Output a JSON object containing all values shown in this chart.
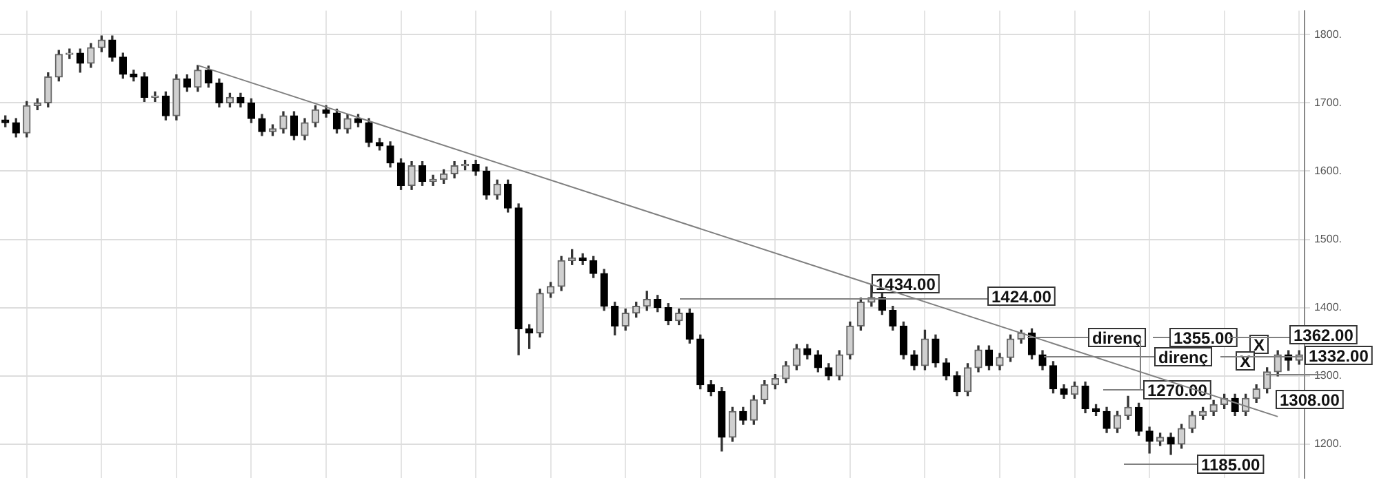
{
  "chart_data": {
    "type": "candlestick",
    "categories": [
      null,
      null,
      null,
      null,
      null,
      null,
      null,
      null,
      null,
      null,
      null,
      null,
      null,
      null,
      null,
      null,
      null,
      null,
      null,
      null,
      null,
      null,
      null,
      null,
      null,
      null,
      null,
      null,
      null,
      null,
      null,
      null,
      null,
      null,
      null,
      null,
      null,
      null,
      null,
      null,
      null,
      null,
      null,
      null,
      null,
      null,
      null,
      null,
      null,
      null,
      null,
      null,
      null,
      null,
      null,
      null,
      null,
      null,
      null,
      null,
      null,
      null,
      null,
      null,
      null,
      null,
      null,
      null,
      null,
      null,
      null,
      null,
      null,
      null,
      null,
      null,
      null,
      null,
      null,
      null,
      null,
      null,
      null,
      null,
      null,
      null,
      null,
      null,
      null,
      null,
      null,
      null,
      null,
      null,
      null,
      null,
      null,
      null,
      null,
      null,
      null,
      null,
      null,
      null,
      null,
      null,
      null,
      null,
      null,
      null,
      null,
      null,
      null,
      null,
      null,
      null,
      null,
      null,
      null,
      null,
      null,
      null
    ],
    "ohlc": [
      [
        1675,
        1681,
        1665,
        1671
      ],
      [
        1671,
        1677,
        1650,
        1656
      ],
      [
        1656,
        1702,
        1650,
        1696
      ],
      [
        1696,
        1706,
        1690,
        1700
      ],
      [
        1700,
        1744,
        1694,
        1738
      ],
      [
        1738,
        1777,
        1732,
        1771
      ],
      [
        1771,
        1779,
        1765,
        1773
      ],
      [
        1773,
        1779,
        1745,
        1758
      ],
      [
        1758,
        1787,
        1752,
        1781
      ],
      [
        1781,
        1798,
        1775,
        1792
      ],
      [
        1792,
        1798,
        1761,
        1767
      ],
      [
        1767,
        1773,
        1736,
        1742
      ],
      [
        1742,
        1748,
        1732,
        1738
      ],
      [
        1738,
        1744,
        1702,
        1708
      ],
      [
        1708,
        1716,
        1702,
        1710
      ],
      [
        1710,
        1716,
        1675,
        1681
      ],
      [
        1681,
        1741,
        1675,
        1735
      ],
      [
        1735,
        1741,
        1717,
        1723
      ],
      [
        1723,
        1755,
        1717,
        1748
      ],
      [
        1748,
        1754,
        1723,
        1729
      ],
      [
        1729,
        1735,
        1694,
        1700
      ],
      [
        1700,
        1714,
        1694,
        1708
      ],
      [
        1708,
        1714,
        1694,
        1700
      ],
      [
        1700,
        1706,
        1671,
        1677
      ],
      [
        1677,
        1683,
        1652,
        1658
      ],
      [
        1658,
        1668,
        1652,
        1662
      ],
      [
        1662,
        1687,
        1656,
        1681
      ],
      [
        1681,
        1687,
        1646,
        1652
      ],
      [
        1652,
        1677,
        1646,
        1671
      ],
      [
        1671,
        1696,
        1665,
        1690
      ],
      [
        1690,
        1696,
        1679,
        1685
      ],
      [
        1685,
        1691,
        1656,
        1662
      ],
      [
        1662,
        1683,
        1656,
        1677
      ],
      [
        1677,
        1683,
        1665,
        1671
      ],
      [
        1671,
        1677,
        1636,
        1642
      ],
      [
        1642,
        1648,
        1631,
        1637
      ],
      [
        1637,
        1643,
        1606,
        1612
      ],
      [
        1612,
        1618,
        1573,
        1579
      ],
      [
        1579,
        1614,
        1573,
        1608
      ],
      [
        1608,
        1614,
        1579,
        1585
      ],
      [
        1585,
        1594,
        1579,
        1588
      ],
      [
        1588,
        1602,
        1582,
        1596
      ],
      [
        1596,
        1614,
        1590,
        1608
      ],
      [
        1608,
        1616,
        1602,
        1610
      ],
      [
        1610,
        1616,
        1594,
        1600
      ],
      [
        1600,
        1606,
        1559,
        1565
      ],
      [
        1565,
        1587,
        1559,
        1581
      ],
      [
        1581,
        1587,
        1540,
        1546
      ],
      [
        1546,
        1552,
        1331,
        1369
      ],
      [
        1369,
        1375,
        1340,
        1363
      ],
      [
        1363,
        1427,
        1357,
        1421
      ],
      [
        1421,
        1437,
        1415,
        1431
      ],
      [
        1431,
        1475,
        1425,
        1469
      ],
      [
        1469,
        1485,
        1463,
        1473
      ],
      [
        1473,
        1479,
        1463,
        1469
      ],
      [
        1469,
        1475,
        1444,
        1450
      ],
      [
        1450,
        1456,
        1396,
        1402
      ],
      [
        1402,
        1408,
        1360,
        1373
      ],
      [
        1373,
        1398,
        1367,
        1392
      ],
      [
        1392,
        1408,
        1386,
        1402
      ],
      [
        1402,
        1424,
        1396,
        1412
      ],
      [
        1412,
        1418,
        1394,
        1400
      ],
      [
        1400,
        1406,
        1375,
        1381
      ],
      [
        1381,
        1398,
        1375,
        1392
      ],
      [
        1392,
        1398,
        1348,
        1354
      ],
      [
        1354,
        1360,
        1281,
        1287
      ],
      [
        1287,
        1293,
        1271,
        1277
      ],
      [
        1277,
        1283,
        1190,
        1210
      ],
      [
        1210,
        1254,
        1204,
        1248
      ],
      [
        1248,
        1254,
        1229,
        1235
      ],
      [
        1235,
        1271,
        1229,
        1265
      ],
      [
        1265,
        1293,
        1259,
        1287
      ],
      [
        1287,
        1302,
        1281,
        1296
      ],
      [
        1296,
        1321,
        1290,
        1315
      ],
      [
        1315,
        1346,
        1309,
        1340
      ],
      [
        1340,
        1346,
        1325,
        1331
      ],
      [
        1331,
        1337,
        1306,
        1312
      ],
      [
        1312,
        1318,
        1294,
        1300
      ],
      [
        1300,
        1337,
        1294,
        1331
      ],
      [
        1331,
        1379,
        1325,
        1373
      ],
      [
        1373,
        1414,
        1367,
        1408
      ],
      [
        1408,
        1434,
        1402,
        1415
      ],
      [
        1415,
        1421,
        1390,
        1396
      ],
      [
        1396,
        1402,
        1367,
        1373
      ],
      [
        1373,
        1379,
        1325,
        1331
      ],
      [
        1331,
        1337,
        1309,
        1315
      ],
      [
        1315,
        1367,
        1309,
        1354
      ],
      [
        1354,
        1360,
        1313,
        1319
      ],
      [
        1319,
        1325,
        1294,
        1300
      ],
      [
        1300,
        1306,
        1271,
        1277
      ],
      [
        1277,
        1318,
        1271,
        1312
      ],
      [
        1312,
        1344,
        1306,
        1338
      ],
      [
        1338,
        1344,
        1309,
        1315
      ],
      [
        1315,
        1333,
        1309,
        1327
      ],
      [
        1327,
        1360,
        1321,
        1354
      ],
      [
        1354,
        1367,
        1348,
        1363
      ],
      [
        1363,
        1369,
        1325,
        1331
      ],
      [
        1331,
        1337,
        1309,
        1315
      ],
      [
        1315,
        1321,
        1275,
        1281
      ],
      [
        1281,
        1287,
        1267,
        1273
      ],
      [
        1273,
        1291,
        1267,
        1285
      ],
      [
        1285,
        1291,
        1246,
        1252
      ],
      [
        1252,
        1258,
        1242,
        1248
      ],
      [
        1248,
        1254,
        1217,
        1223
      ],
      [
        1223,
        1248,
        1217,
        1242
      ],
      [
        1242,
        1270,
        1236,
        1254
      ],
      [
        1254,
        1260,
        1213,
        1219
      ],
      [
        1219,
        1225,
        1187,
        1204
      ],
      [
        1204,
        1216,
        1198,
        1210
      ],
      [
        1210,
        1216,
        1185,
        1200
      ],
      [
        1200,
        1229,
        1194,
        1223
      ],
      [
        1223,
        1248,
        1217,
        1242
      ],
      [
        1242,
        1254,
        1236,
        1248
      ],
      [
        1248,
        1264,
        1242,
        1258
      ],
      [
        1258,
        1273,
        1252,
        1267
      ],
      [
        1267,
        1273,
        1242,
        1248
      ],
      [
        1248,
        1273,
        1242,
        1267
      ],
      [
        1267,
        1287,
        1261,
        1281
      ],
      [
        1281,
        1312,
        1275,
        1306
      ],
      [
        1306,
        1337,
        1300,
        1331
      ],
      [
        1331,
        1337,
        1308,
        1323
      ],
      [
        1323,
        1337,
        1317,
        1331
      ]
    ],
    "annotations": [
      "1434.00",
      "1424.00",
      "direnç",
      "1355.00",
      "1362.00",
      "direnç",
      "1332.00",
      "1308.00",
      "1270.00",
      "1185.00",
      "X",
      "X"
    ],
    "ylim": [
      1150,
      1835
    ],
    "yticks": [
      {
        "value": 1200,
        "label": "1200."
      },
      {
        "value": 1300,
        "label": "1300."
      },
      {
        "value": 1400,
        "label": "1400."
      },
      {
        "value": 1500,
        "label": "1500."
      },
      {
        "value": 1600,
        "label": "1600."
      },
      {
        "value": 1700,
        "label": "1700."
      },
      {
        "value": 1800,
        "label": "1800."
      }
    ],
    "tick_labels": "y",
    "grid": true,
    "legend": false
  }
}
